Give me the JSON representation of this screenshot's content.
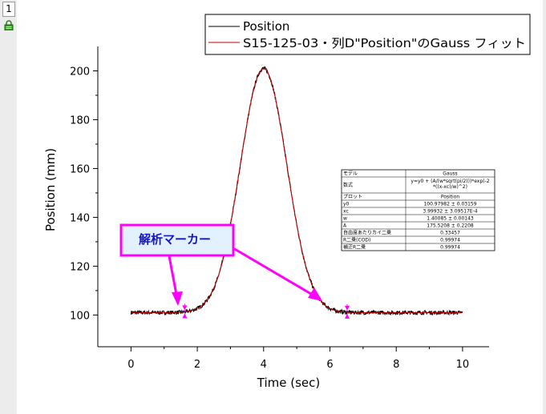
{
  "window": {
    "layer_tab": "1",
    "lock_icon": "lock-icon"
  },
  "chart_data": {
    "type": "line",
    "xlabel": "Time (sec)",
    "ylabel": "Position (mm)",
    "xlim": [
      -1,
      10.8
    ],
    "ylim": [
      87,
      210
    ],
    "xticks": [
      0,
      2,
      4,
      6,
      8,
      10
    ],
    "yticks": [
      100,
      120,
      140,
      160,
      180,
      200
    ],
    "legend": {
      "placement": "top-right",
      "entries": [
        {
          "name": "Position",
          "color": "#000000"
        },
        {
          "name": "S15-125-03・列D\"Position\"のGauss フィット",
          "color": "#c00000"
        }
      ]
    },
    "series": [
      {
        "name": "Position",
        "kind": "data",
        "x_range": [
          0,
          10
        ],
        "color": "#000000",
        "model": {
          "y0": 100.97982,
          "xc": 3.99932,
          "w": 1.40085,
          "A": 175.5208
        }
      },
      {
        "name": "S15-125-03・列D\"Position\"のGauss フィット",
        "kind": "fit",
        "x_range": [
          0,
          10
        ],
        "color": "#c00000",
        "model": {
          "y0": 100.97982,
          "xc": 3.99932,
          "w": 1.40085,
          "A": 175.5208
        }
      }
    ],
    "fit_table": {
      "header": [
        "モデル",
        "Gauss"
      ],
      "equation_label": "数式",
      "equation_lines": [
        "y=y0 + (A/(w*sqrt(pi/2)))*exp(-2",
        "*((x-xc)/w)^2)"
      ],
      "rows": [
        [
          "プロット",
          "Position"
        ],
        [
          "y0",
          "100.97982 ± 0.03159"
        ],
        [
          "xc",
          "3.99932 ± 3.09517E-4"
        ],
        [
          "w",
          "1.40085 ± 0.00143"
        ],
        [
          "A",
          "175.5208 ± 0.2208"
        ],
        [
          "自由度あたりカイ二乗",
          "0.33457"
        ],
        [
          "R二乗(COD)",
          "0.99974"
        ],
        [
          "補正R二乗",
          "0.99974"
        ]
      ]
    },
    "annotation": {
      "text": "解析マーカー",
      "bg_color": "#e3f1ff",
      "border_color": "#ff00ff",
      "arrow_color": "#ff00ff",
      "markers_x": [
        1.62,
        6.52
      ]
    }
  }
}
